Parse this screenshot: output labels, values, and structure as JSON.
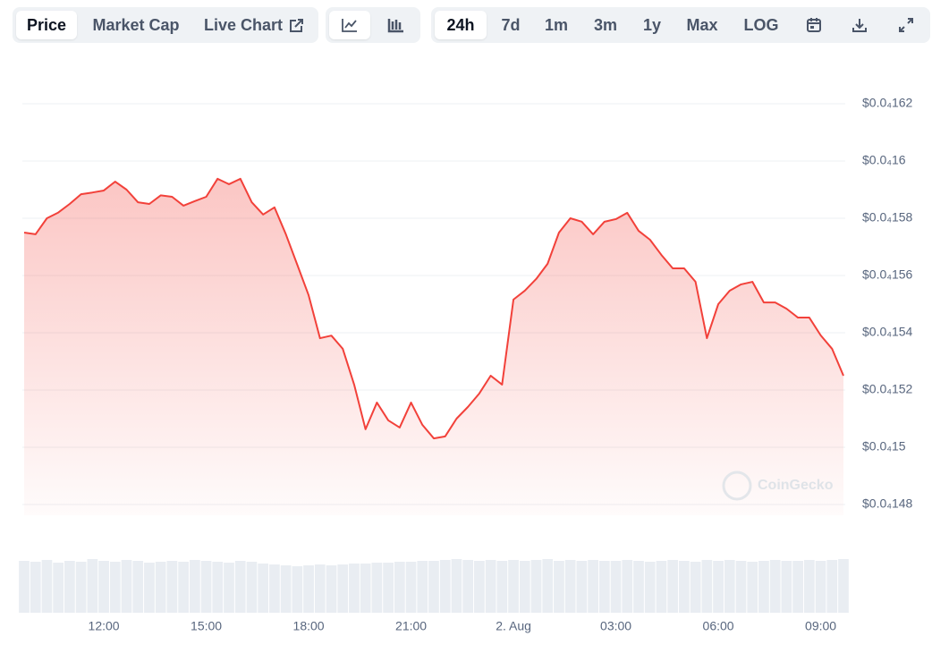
{
  "toolbar": {
    "view": [
      "Price",
      "Market Cap",
      "Live Chart"
    ],
    "range": [
      "24h",
      "7d",
      "1m",
      "3m",
      "1y",
      "Max",
      "LOG"
    ]
  },
  "chart_data": {
    "type": "area",
    "watermark": "CoinGecko",
    "color": "#f2413a",
    "categories": [
      null,
      null,
      null,
      null,
      null,
      null,
      null,
      "12:00",
      null,
      null,
      null,
      null,
      null,
      null,
      null,
      null,
      "15:00",
      null,
      null,
      null,
      null,
      null,
      null,
      null,
      null,
      "18:00",
      null,
      null,
      null,
      null,
      null,
      null,
      null,
      null,
      "21:00",
      null,
      null,
      null,
      null,
      null,
      null,
      null,
      null,
      "2. Aug",
      null,
      null,
      null,
      null,
      null,
      null,
      null,
      null,
      "03:00",
      null,
      null,
      null,
      null,
      null,
      null,
      null,
      null,
      "06:00",
      null,
      null,
      null,
      null,
      null,
      null,
      null,
      null,
      "09:00",
      null,
      null
    ],
    "values": [
      1.575e-05,
      1.5744e-05,
      1.58e-05,
      1.582e-05,
      1.585e-05,
      1.5884e-05,
      1.589e-05,
      1.5897e-05,
      1.5928e-05,
      1.59e-05,
      1.5856e-05,
      1.585e-05,
      1.588e-05,
      1.5875e-05,
      1.5844e-05,
      1.586e-05,
      1.5875e-05,
      1.5938e-05,
      1.5919e-05,
      1.5938e-05,
      1.5856e-05,
      1.5813e-05,
      1.5838e-05,
      1.5744e-05,
      1.5638e-05,
      1.5531e-05,
      1.5381e-05,
      1.539e-05,
      1.5344e-05,
      1.5219e-05,
      1.5063e-05,
      1.5156e-05,
      1.5094e-05,
      1.5069e-05,
      1.5156e-05,
      1.5078e-05,
      1.5031e-05,
      1.5038e-05,
      1.51e-05,
      1.5141e-05,
      1.5188e-05,
      1.525e-05,
      1.5219e-05,
      1.5516e-05,
      1.5547e-05,
      1.5588e-05,
      1.5641e-05,
      1.575e-05,
      1.58e-05,
      1.5788e-05,
      1.5744e-05,
      1.5788e-05,
      1.5797e-05,
      1.5819e-05,
      1.5756e-05,
      1.5725e-05,
      1.5672e-05,
      1.5625e-05,
      1.5625e-05,
      1.5578e-05,
      1.5381e-05,
      1.55e-05,
      1.5547e-05,
      1.5569e-05,
      1.5578e-05,
      1.5506e-05,
      1.5506e-05,
      1.5484e-05,
      1.5453e-05,
      1.5453e-05,
      1.5391e-05,
      1.5344e-05,
      1.525e-05
    ],
    "volume": [
      58,
      57,
      59,
      56,
      58,
      57,
      60,
      58,
      57,
      59,
      58,
      56,
      57,
      58,
      57,
      59,
      58,
      57,
      56,
      58,
      57,
      55,
      54,
      53,
      52,
      53,
      54,
      53,
      54,
      55,
      55,
      56,
      56,
      57,
      57,
      58,
      58,
      59,
      60,
      59,
      58,
      59,
      58,
      59,
      58,
      59,
      60,
      58,
      59,
      58,
      59,
      58,
      58,
      59,
      58,
      57,
      58,
      59,
      58,
      57,
      59,
      58,
      59,
      58,
      57,
      58,
      59,
      58,
      58,
      59,
      58,
      59,
      60
    ],
    "ylim": [
      1.48e-05,
      1.62e-05
    ],
    "yticks": [
      {
        "value": 1.48e-05,
        "label": "$0.0₄148"
      },
      {
        "value": 1.5e-05,
        "label": "$0.0₄15"
      },
      {
        "value": 1.52e-05,
        "label": "$0.0₄152"
      },
      {
        "value": 1.54e-05,
        "label": "$0.0₄154"
      },
      {
        "value": 1.56e-05,
        "label": "$0.0₄156"
      },
      {
        "value": 1.58e-05,
        "label": "$0.0₄158"
      },
      {
        "value": 1.6e-05,
        "label": "$0.0₄16"
      },
      {
        "value": 1.62e-05,
        "label": "$0.0₄162"
      }
    ],
    "grid": true
  }
}
